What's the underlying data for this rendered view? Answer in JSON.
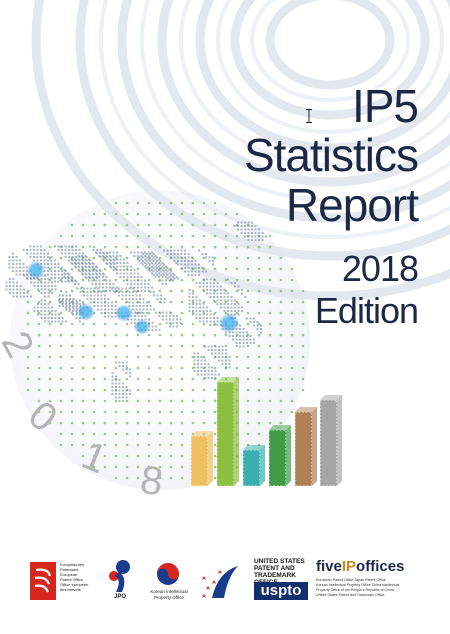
{
  "title": {
    "line1": "IP5",
    "line2": "Statistics",
    "line3": "Report"
  },
  "edition": {
    "line1": "2018",
    "line2": "Edition"
  },
  "year_digits": [
    "2",
    "0",
    "1",
    "8"
  ],
  "colors": {
    "title": "#1d2846",
    "bars": [
      "#f0c060",
      "#8cbf3f",
      "#3ab0b0",
      "#3f9c45",
      "#b07f56",
      "#a6a6a6"
    ]
  },
  "logos": {
    "epo": {
      "lines": [
        "Europäisches",
        "Patentamt",
        "European",
        "Patent Office",
        "Office européen",
        "des brevets"
      ]
    },
    "jpo": {
      "label": "JPO"
    },
    "kipo": {
      "line1": "Korean Intellectual",
      "line2": "Property Office"
    },
    "uspto": {
      "line1": "UNITED STATES",
      "line2": "PATENT AND",
      "line3": "TRADEMARK OFFICE",
      "mark": "uspto"
    },
    "fiveipoffices": {
      "pre": "five",
      "mid": "IP",
      "post": "offices",
      "tagline": [
        "European Patent Office  Japan Patent Office",
        "Korean Intellectual Property Office  China Intellectual",
        "Property Office of the People's Republic of China",
        "United States Patent and Trademark Office"
      ]
    }
  }
}
